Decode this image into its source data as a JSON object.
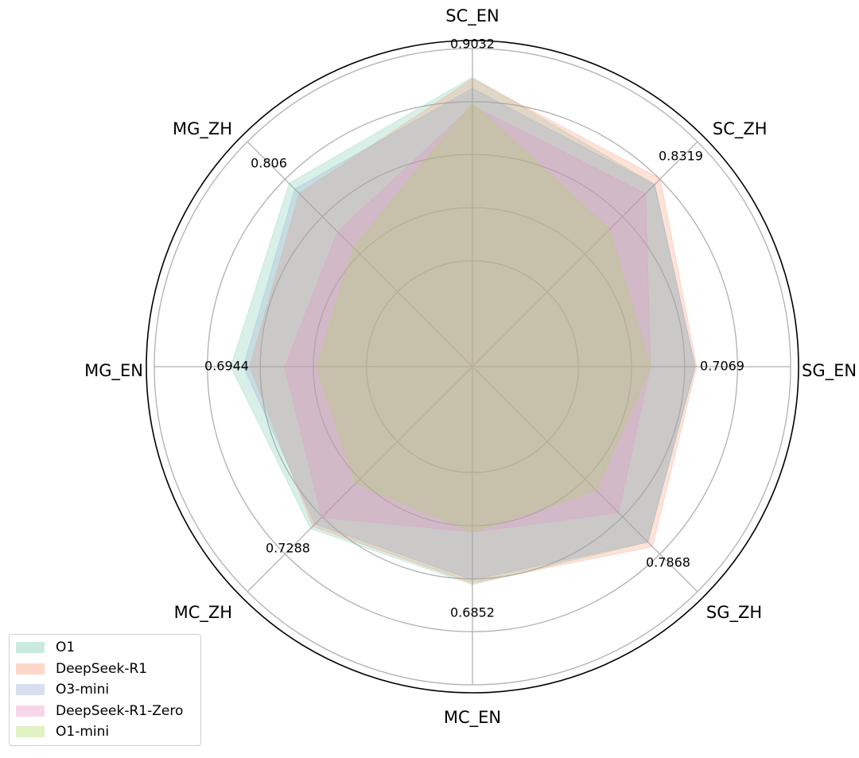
{
  "chart_data": {
    "type": "radar",
    "axes": [
      "SC_EN",
      "SC_ZH",
      "SG_EN",
      "SG_ZH",
      "MC_EN",
      "MC_ZH",
      "MG_EN",
      "MG_ZH"
    ],
    "value_labels": [
      "0.9032",
      "0.8319",
      "0.7069",
      "0.7868",
      "0.6852",
      "0.7288",
      "0.6944",
      "0.806"
    ],
    "radial_range": [
      0,
      1
    ],
    "radial_gridlines": [
      0.333,
      0.5,
      0.667,
      0.833,
      1.0
    ],
    "grid": true,
    "legend_position": "bottom-left",
    "series": [
      {
        "name": "O1",
        "color": "#66c2a5",
        "values": [
          0.91,
          0.81,
          0.7,
          0.78,
          0.685,
          0.72,
          0.76,
          0.815
        ]
      },
      {
        "name": "DeepSeek-R1",
        "color": "#fc8d62",
        "values": [
          0.905,
          0.835,
          0.705,
          0.8,
          0.68,
          0.71,
          0.7,
          0.77
        ]
      },
      {
        "name": "O3-mini",
        "color": "#8da0cb",
        "values": [
          0.875,
          0.81,
          0.7,
          0.78,
          0.67,
          0.7,
          0.72,
          0.79
        ]
      },
      {
        "name": "DeepSeek-R1-Zero",
        "color": "#e78ac3",
        "values": [
          0.82,
          0.77,
          0.56,
          0.65,
          0.52,
          0.67,
          0.59,
          0.6
        ]
      },
      {
        "name": "O1-mini",
        "color": "#a6d854",
        "values": [
          0.83,
          0.61,
          0.56,
          0.55,
          0.52,
          0.52,
          0.49,
          0.53
        ]
      }
    ]
  }
}
